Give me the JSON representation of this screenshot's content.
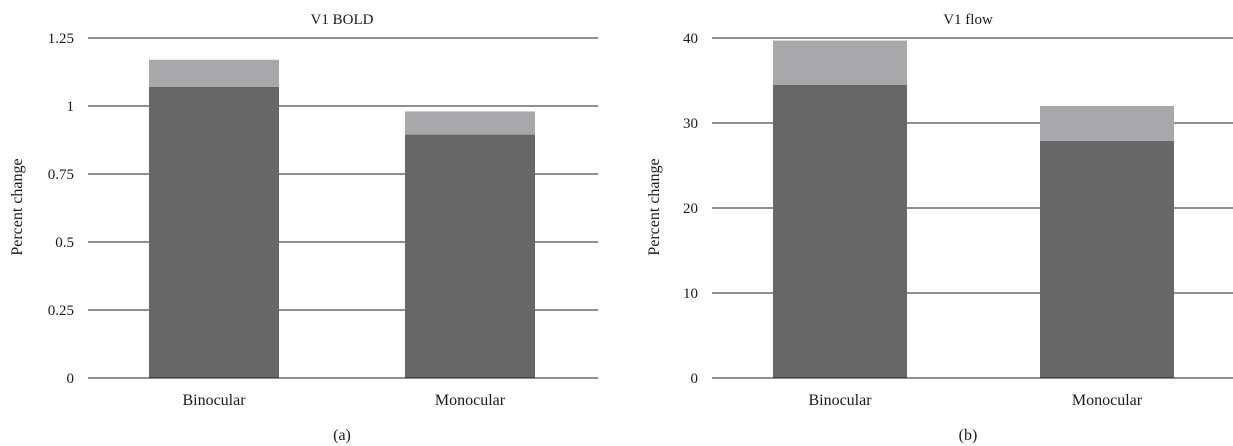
{
  "chart_data": [
    {
      "type": "bar",
      "stacked": true,
      "title": "V1 BOLD",
      "xlabel": "",
      "ylabel": "Percent change",
      "panel_label": "(a)",
      "categories": [
        "Binocular",
        "Monocular"
      ],
      "series": [
        {
          "values": [
            1.07,
            0.895
          ],
          "color": "#676767"
        },
        {
          "values": [
            0.1,
            0.085
          ],
          "color": "#a8a8aa"
        }
      ],
      "ylim": [
        0,
        1.25
      ],
      "yticks": [
        0,
        0.25,
        0.5,
        0.75,
        1,
        1.25
      ],
      "ytick_labels": [
        "0",
        "0.25",
        "0.5",
        "0.75",
        "1",
        "1.25"
      ],
      "grid": true
    },
    {
      "type": "bar",
      "stacked": true,
      "title": "V1 flow",
      "xlabel": "",
      "ylabel": "Percent change",
      "panel_label": "(b)",
      "categories": [
        "Binocular",
        "Monocular"
      ],
      "series": [
        {
          "values": [
            34.5,
            27.9
          ],
          "color": "#676767"
        },
        {
          "values": [
            5.2,
            4.1
          ],
          "color": "#a8a8aa"
        }
      ],
      "ylim": [
        0,
        40
      ],
      "yticks": [
        0,
        10,
        20,
        30,
        40
      ],
      "ytick_labels": [
        "0",
        "10",
        "20",
        "30",
        "40"
      ],
      "grid": true
    }
  ]
}
